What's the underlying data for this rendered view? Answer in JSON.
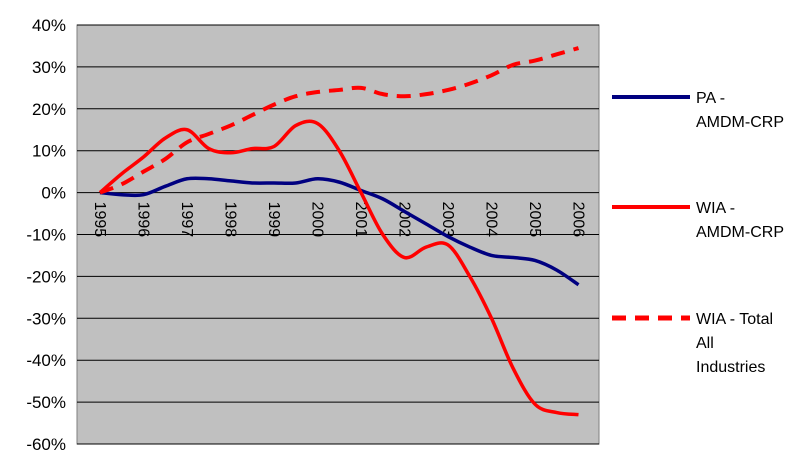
{
  "chart_data": {
    "type": "line",
    "title": "",
    "xlabel": "",
    "ylabel": "",
    "ylim": [
      -60,
      40
    ],
    "y_tick_step": 10,
    "y_tick_labels": [
      "40%",
      "30%",
      "20%",
      "10%",
      "0%",
      "-10%",
      "-20%",
      "-30%",
      "-40%",
      "-50%",
      "-60%"
    ],
    "x_tick_labels": [
      "1995",
      "1996",
      "1997",
      "1998",
      "1999",
      "2000",
      "2001",
      "2002",
      "2003",
      "2004",
      "2005",
      "2006"
    ],
    "grid": "horizontal",
    "plot_background": "#c0c0c0",
    "legend_position": "right",
    "series": [
      {
        "name": "PA - AMDM-CRP",
        "legend_lines": [
          "PA -",
          "AMDM-CRP"
        ],
        "color": "#000080",
        "style": "solid",
        "x": [
          1995,
          1995.5,
          1996,
          1996.5,
          1997,
          1997.5,
          1998,
          1998.5,
          1999,
          1999.5,
          2000,
          2000.5,
          2001,
          2001.5,
          2002,
          2002.5,
          2003,
          2003.5,
          2004,
          2004.5,
          2005,
          2005.5,
          2006
        ],
        "values": [
          0,
          -0.5,
          -0.5,
          1.5,
          3.3,
          3.3,
          2.8,
          2.3,
          2.3,
          2.3,
          3.3,
          2.5,
          0.5,
          -1.5,
          -4.5,
          -7.5,
          -10.5,
          -13,
          -15,
          -15.5,
          -16.2,
          -18.5,
          -22
        ]
      },
      {
        "name": "WIA - AMDM-CRP",
        "legend_lines": [
          "WIA -",
          "AMDM-CRP"
        ],
        "color": "#ff0000",
        "style": "solid",
        "x": [
          1995,
          1995.5,
          1996,
          1996.5,
          1997,
          1997.5,
          1998,
          1998.5,
          1999,
          1999.5,
          2000,
          2000.5,
          2001,
          2001.5,
          2002,
          2002.5,
          2003,
          2003.5,
          2004,
          2004.5,
          2005,
          2005.5,
          2006
        ],
        "values": [
          0,
          4.5,
          8.5,
          13,
          15,
          10.5,
          9.5,
          10.5,
          11,
          16,
          16.5,
          10,
          0,
          -10,
          -15.5,
          -13,
          -12.5,
          -20,
          -30,
          -42,
          -50.5,
          -52.5,
          -53
        ]
      },
      {
        "name": "WIA - Total All Industries",
        "legend_lines": [
          "WIA - Total",
          "All",
          "Industries"
        ],
        "color": "#ff0000",
        "style": "dashed",
        "x": [
          1995,
          1995.5,
          1996,
          1996.5,
          1997,
          1997.5,
          1998,
          1998.5,
          1999,
          1999.5,
          2000,
          2000.5,
          2001,
          2001.5,
          2002,
          2002.5,
          2003,
          2003.5,
          2004,
          2004.5,
          2005,
          2005.5,
          2006
        ],
        "values": [
          0,
          2,
          5,
          8,
          12,
          14,
          16,
          18.5,
          21,
          23,
          24,
          24.5,
          25,
          23.5,
          23,
          23.5,
          24.5,
          26,
          28,
          30.5,
          31.5,
          33,
          34.5
        ]
      }
    ]
  }
}
